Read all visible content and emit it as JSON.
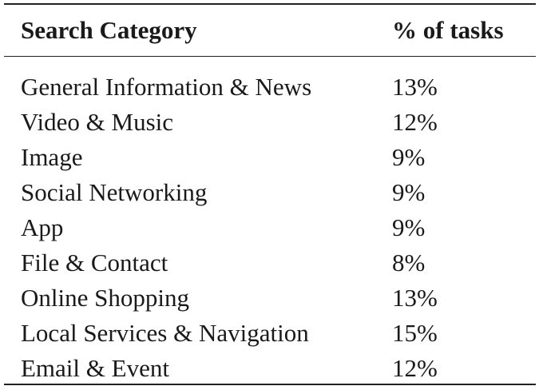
{
  "table": {
    "headers": {
      "category": "Search Category",
      "percent": "% of tasks"
    },
    "rows": [
      {
        "category": "General Information & News",
        "percent": "13%"
      },
      {
        "category": "Video & Music",
        "percent": "12%"
      },
      {
        "category": "Image",
        "percent": "9%"
      },
      {
        "category": "Social Networking",
        "percent": "9%"
      },
      {
        "category": "App",
        "percent": "9%"
      },
      {
        "category": "File & Contact",
        "percent": "8%"
      },
      {
        "category": "Online Shopping",
        "percent": "13%"
      },
      {
        "category": "Local Services & Navigation",
        "percent": "15%"
      },
      {
        "category": "Email & Event",
        "percent": "12%"
      }
    ]
  }
}
